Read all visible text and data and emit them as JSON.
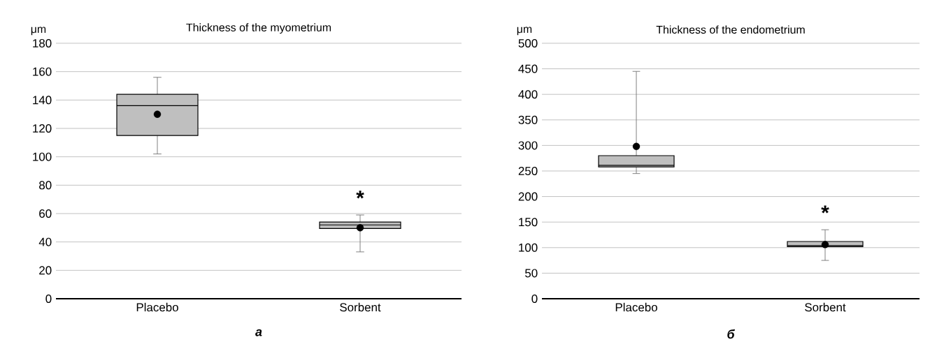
{
  "chart_data": [
    {
      "type": "box",
      "title": "Thickness of the myometrium",
      "ylabel": "μm",
      "categories": [
        "Placebo",
        "Sorbent"
      ],
      "boxes": [
        {
          "low": 102,
          "q1": 115,
          "median": 136,
          "q3": 144,
          "high": 156,
          "mean": 130
        },
        {
          "low": 33,
          "q1": 49.5,
          "median": 52,
          "q3": 54,
          "high": 59,
          "mean": 50
        }
      ],
      "color": "#bfbfbf",
      "ylim": [
        0,
        180
      ],
      "yticks": [
        0,
        20,
        40,
        60,
        80,
        100,
        120,
        140,
        160,
        180
      ],
      "grid": "y",
      "annotations": [
        "*",
        "а"
      ]
    },
    {
      "type": "box",
      "title": "Thickness of the endometrium",
      "ylabel": "μm",
      "categories": [
        "Placebo",
        "Sorbent"
      ],
      "boxes": [
        {
          "low": 245,
          "q1": 258,
          "median": 261,
          "q3": 280,
          "high": 445,
          "mean": 298
        },
        {
          "low": 75,
          "q1": 102,
          "median": 104,
          "q3": 112,
          "high": 135,
          "mean": 106
        }
      ],
      "color": "#bfbfbf",
      "ylim": [
        0,
        500
      ],
      "yticks": [
        0,
        50,
        100,
        150,
        200,
        250,
        300,
        350,
        400,
        450,
        500
      ],
      "grid": "y",
      "annotations": [
        "*",
        "б"
      ]
    }
  ]
}
